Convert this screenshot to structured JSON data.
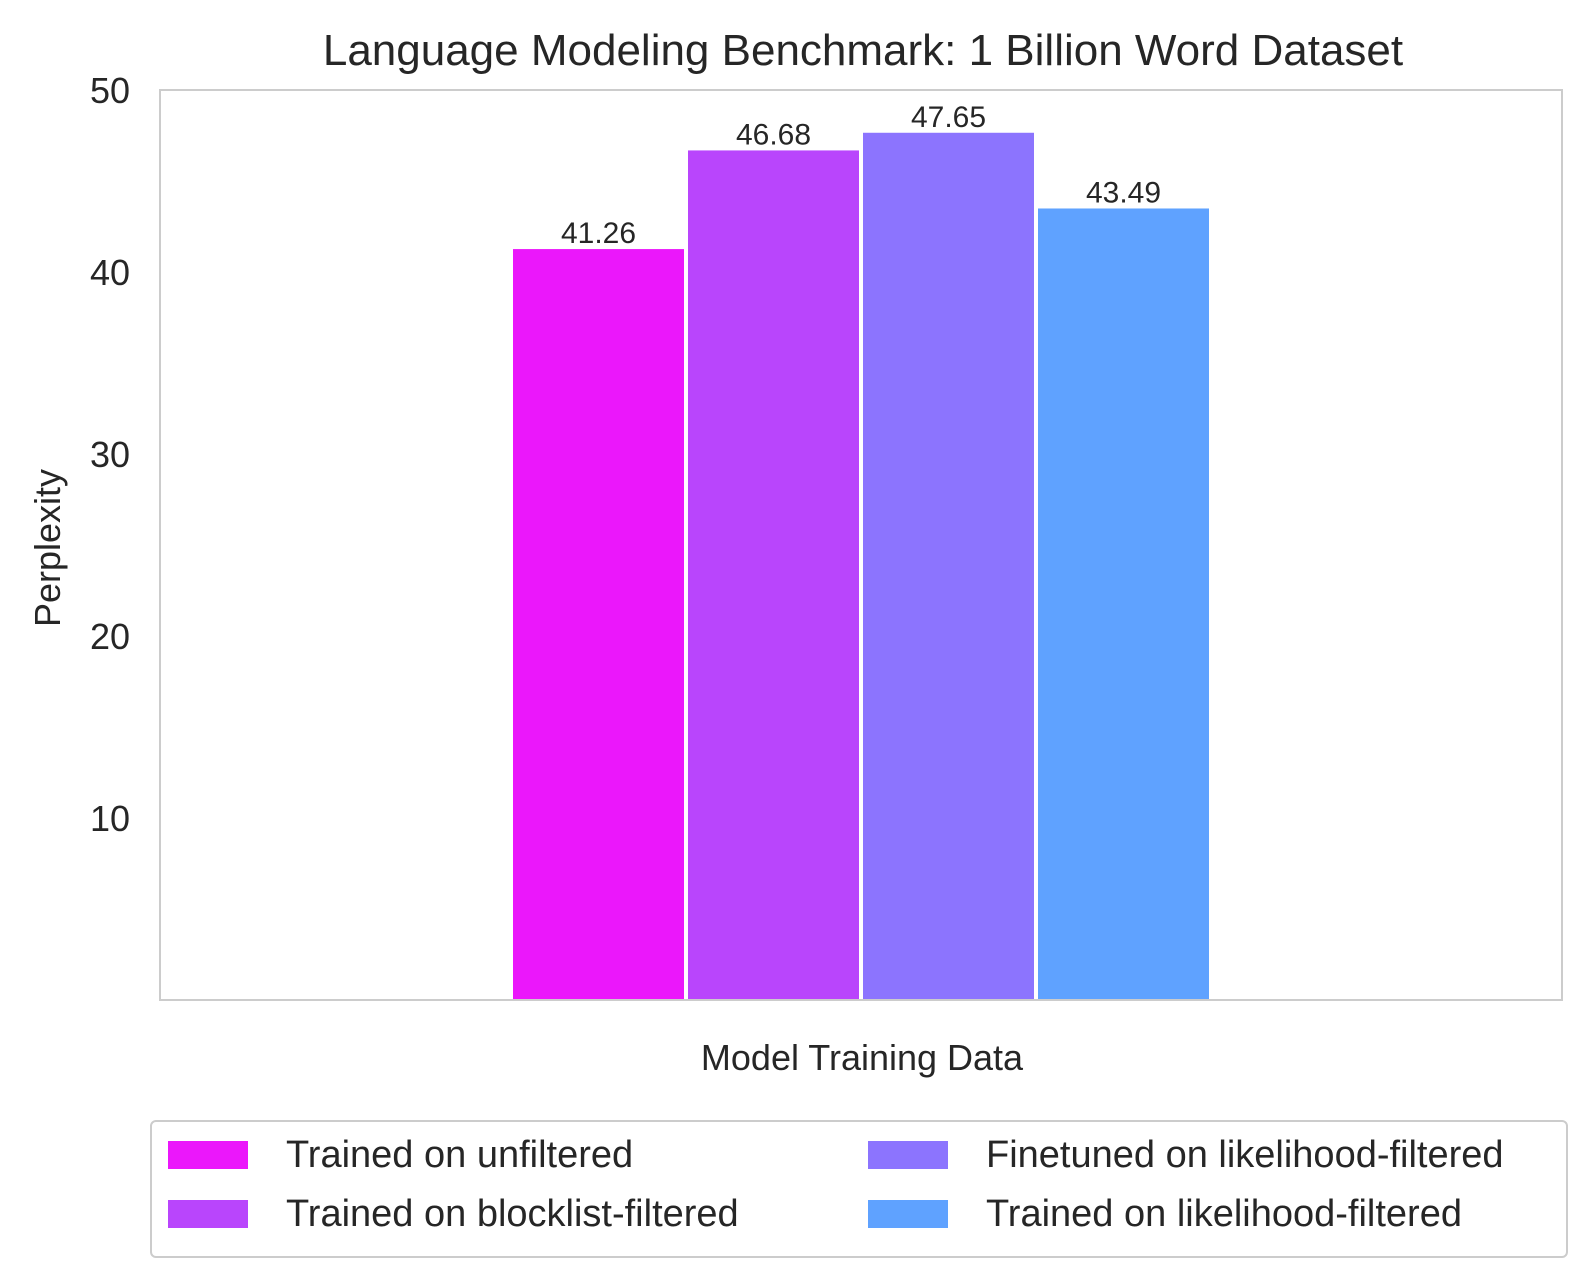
{
  "chart_data": {
    "type": "bar",
    "title": "Language Modeling Benchmark: 1 Billion Word Dataset",
    "xlabel": "Model Training Data",
    "ylabel": "Perplexity",
    "ylim": [
      0,
      50
    ],
    "yticks": [
      10,
      20,
      30,
      40,
      50
    ],
    "grid": false,
    "legend_position": "bottom",
    "series": [
      {
        "name": "Trained on unfiltered",
        "value": 41.26,
        "label": "41.26",
        "color": "#eb17fb"
      },
      {
        "name": "Trained on blocklist-filtered",
        "value": 46.68,
        "label": "46.68",
        "color": "#b945fc"
      },
      {
        "name": "Finetuned on likelihood-filtered",
        "value": 47.65,
        "label": "47.65",
        "color": "#8c74fe"
      },
      {
        "name": "Trained on likelihood-filtered",
        "value": 43.49,
        "label": "43.49",
        "color": "#5fa2ff"
      }
    ]
  }
}
